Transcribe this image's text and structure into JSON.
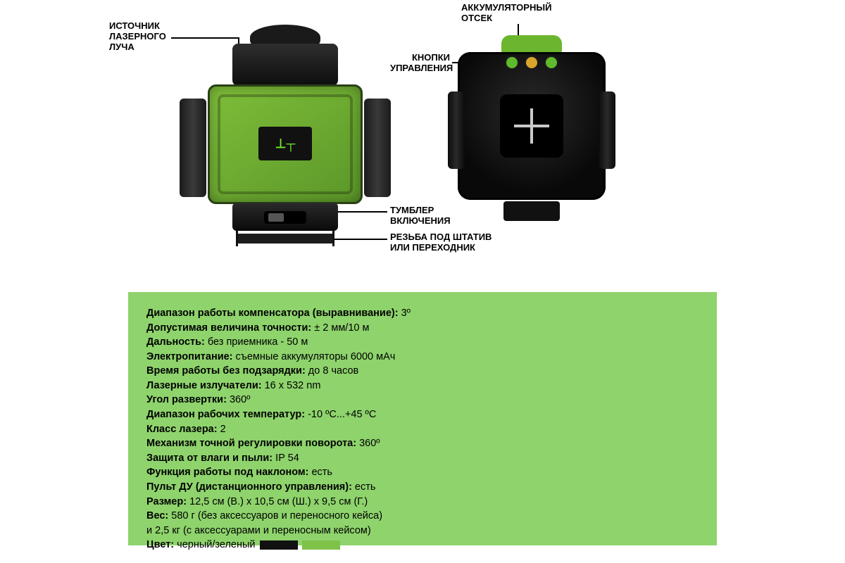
{
  "callouts": {
    "laser_source": "ИСТОЧНИК\nЛАЗЕРНОГО\nЛУЧА",
    "battery_compartment": "АККУМУЛЯТОРНЫЙ\nОТСЕК",
    "control_buttons": "КНОПКИ\nУПРАВЛЕНИЯ",
    "power_switch": "ТУМБЛЕР\nВКЛЮЧЕНИЯ",
    "tripod_thread": "РЕЗЬБА ПОД ШТАТИВ\nИЛИ ПЕРЕХОДНИК"
  },
  "logo_text": "⊥┬",
  "specs": [
    {
      "label": "Диапазон работы компенсатора (выравнивание):",
      "value": " 3º"
    },
    {
      "label": "Допустимая величина точности:",
      "value": " ± 2 мм/10 м"
    },
    {
      "label": "Дальность:",
      "value": " без приемника - 50 м"
    },
    {
      "label": "Электропитание:",
      "value": " съемные аккумуляторы 6000 мАч"
    },
    {
      "label": "Время работы без подзарядки:",
      "value": " до 8 часов"
    },
    {
      "label": "Лазерные излучатели:",
      "value": " 16 x 532 nm"
    },
    {
      "label": "Угол развертки:",
      "value": " 360º"
    },
    {
      "label": "Диапазон рабочих температур:",
      "value": " -10 ºС...+45 ºС"
    },
    {
      "label": "Класс лазера:",
      "value": " 2"
    },
    {
      "label": "Механизм точной регулировки поворота:",
      "value": " 360º"
    },
    {
      "label": "Защита от влаги и пыли:",
      "value": " IP 54"
    },
    {
      "label": "Функция работы под наклоном:",
      "value": " есть"
    },
    {
      "label": "Пульт ДУ (дистанционного управления):",
      "value": " есть"
    },
    {
      "label": "Размер:",
      "value": " 12,5 см (В.) х 10,5 см (Ш.) х 9,5 см (Г.)"
    },
    {
      "label": "Вес:",
      "value": " 580 г (без аксессуаров и переносного кейса)\nи 2,5 кг (с аксессуарами и переносным кейсом)"
    },
    {
      "label": "Цвет:",
      "value": " черный/зеленый"
    }
  ],
  "colors": {
    "panel_bg": "#8ed36c",
    "device_green": "#6cb52e",
    "swatch_black": "#111111",
    "swatch_green": "#7fc24a"
  }
}
